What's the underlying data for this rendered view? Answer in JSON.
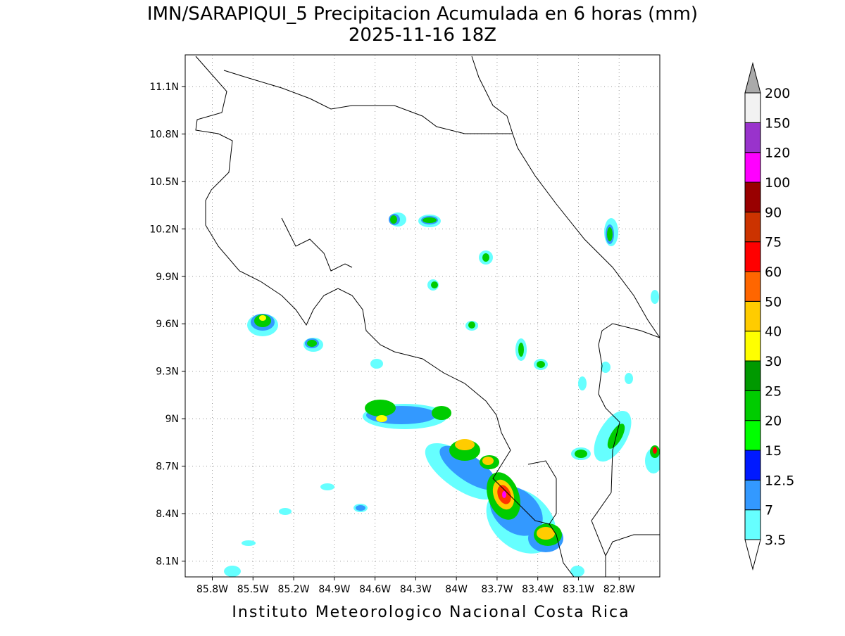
{
  "title": "IMN/SARAPIQUI_5 Precipitacion Acumulada en 6 horas (mm)",
  "subtitle": "2025-11-16 18Z",
  "footer": "Instituto Meteorologico Nacional Costa Rica",
  "map": {
    "xlim": [
      -86,
      -82.5
    ],
    "ylim": [
      8,
      11.3
    ],
    "grid": true,
    "xticks": [
      {
        "value": -85.8,
        "label": "85.8W"
      },
      {
        "value": -85.5,
        "label": "85.5W"
      },
      {
        "value": -85.2,
        "label": "85.2W"
      },
      {
        "value": -84.9,
        "label": "84.9W"
      },
      {
        "value": -84.6,
        "label": "84.6W"
      },
      {
        "value": -84.3,
        "label": "84.3W"
      },
      {
        "value": -84,
        "label": "84W"
      },
      {
        "value": -83.7,
        "label": "83.7W"
      },
      {
        "value": -83.4,
        "label": "83.4W"
      },
      {
        "value": -83.1,
        "label": "83.1W"
      },
      {
        "value": -82.8,
        "label": "82.8W"
      }
    ],
    "yticks": [
      {
        "value": 8.1,
        "label": "8.1N"
      },
      {
        "value": 8.4,
        "label": "8.4N"
      },
      {
        "value": 8.7,
        "label": "8.7N"
      },
      {
        "value": 9,
        "label": "9N"
      },
      {
        "value": 9.3,
        "label": "9.3N"
      },
      {
        "value": 9.6,
        "label": "9.6N"
      },
      {
        "value": 9.9,
        "label": "9.9N"
      },
      {
        "value": 10.2,
        "label": "10.2N"
      },
      {
        "value": 10.5,
        "label": "10.5N"
      },
      {
        "value": 10.8,
        "label": "10.8N"
      },
      {
        "value": 11.1,
        "label": "11.1N"
      }
    ]
  },
  "colorbar": {
    "levels": [
      3.5,
      7,
      12.5,
      15,
      20,
      25,
      30,
      40,
      50,
      60,
      75,
      90,
      100,
      120,
      150,
      200
    ],
    "colors": [
      "#66ffff",
      "#3399ff",
      "#0019ff",
      "#00ff00",
      "#00cc00",
      "#009900",
      "#ffff00",
      "#ffcc00",
      "#ff6600",
      "#ff0000",
      "#cc3300",
      "#990000",
      "#ff00ff",
      "#9933cc",
      "#f2f2f2"
    ],
    "under_color": "#ffffff",
    "over_color": "#aaaaaa"
  }
}
